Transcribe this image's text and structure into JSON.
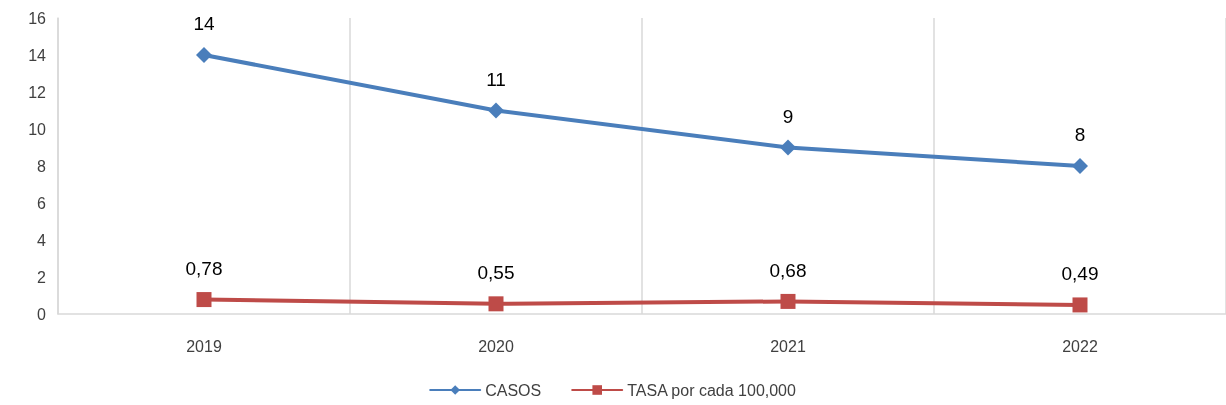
{
  "chart_data": {
    "type": "line",
    "categories": [
      "2019",
      "2020",
      "2021",
      "2022"
    ],
    "series": [
      {
        "name": "CASOS",
        "color": "#4a7ebb",
        "marker": "diamond",
        "values": [
          14,
          11,
          9,
          8
        ],
        "value_labels": [
          "14",
          "11",
          "9",
          "8"
        ]
      },
      {
        "name": "TASA por cada 100,000",
        "color": "#be4b48",
        "marker": "square",
        "values": [
          0.78,
          0.55,
          0.68,
          0.49
        ],
        "value_labels": [
          "0,78",
          "0,55",
          "0,68",
          "0,49"
        ]
      }
    ],
    "ylim": [
      0,
      16
    ],
    "yticks": [
      0,
      2,
      4,
      6,
      8,
      10,
      12,
      14,
      16
    ],
    "grid": "x",
    "legend": "bottom",
    "line_style": "solid"
  }
}
